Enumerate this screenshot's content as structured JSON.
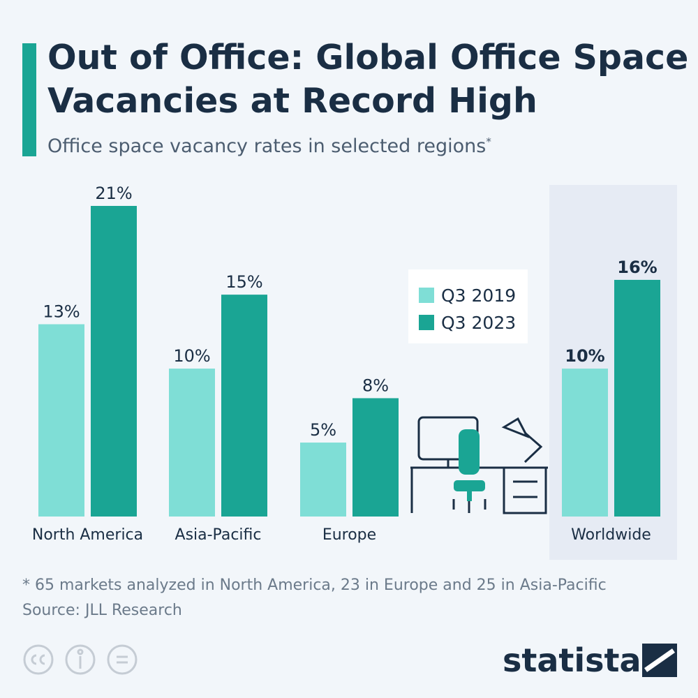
{
  "chart_data": {
    "type": "bar",
    "title": "Out of Office: Global Office Space Vacancies at Record High",
    "subtitle": "Office space vacancy rates in selected regions",
    "subtitle_marker": "*",
    "categories": [
      "North America",
      "Asia-Pacific",
      "Europe",
      "Worldwide"
    ],
    "series": [
      {
        "name": "Q3 2019",
        "color": "#7fded6",
        "values": [
          13,
          10,
          5,
          10
        ],
        "value_labels": [
          "13%",
          "10%",
          "5%",
          "10%"
        ]
      },
      {
        "name": "Q3 2023",
        "color": "#1aa594",
        "values": [
          21,
          15,
          8,
          16
        ],
        "value_labels": [
          "21%",
          "15%",
          "8%",
          "16%"
        ]
      }
    ],
    "highlight_category": "Worldwide",
    "footnote": "* 65 markets analyzed in North America, 23 in Europe and 25 in Asia-Pacific",
    "source": "Source: JLL Research",
    "brand": "statista"
  }
}
